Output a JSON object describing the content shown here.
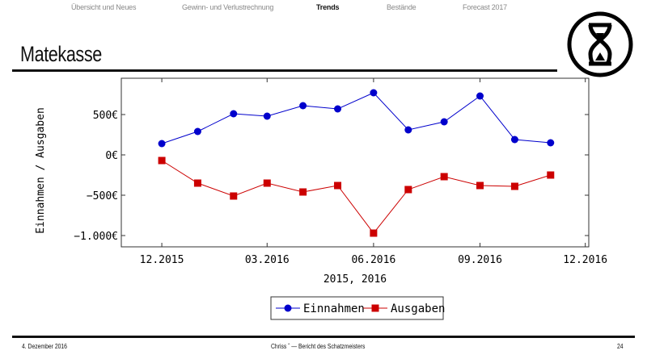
{
  "nav": {
    "items": [
      {
        "label": "Übersicht und Neues",
        "active": false
      },
      {
        "label": "Gewinn- und Verlustrechnung",
        "active": false
      },
      {
        "label": "Trends",
        "active": true
      },
      {
        "label": "Bestände",
        "active": false
      },
      {
        "label": "Forecast 2017",
        "active": false
      }
    ]
  },
  "slide": {
    "title": "Matekasse",
    "logo": "hourglass-circle-logo"
  },
  "footer": {
    "date": "4. Dezember 2016",
    "center": "Chriss ˆ — Bericht des Schatzmeisters",
    "page": "24"
  },
  "chart_data": {
    "type": "line",
    "title": "",
    "xlabel": "2015, 2016",
    "ylabel": "Einnahmen / Ausgaben",
    "x": [
      "2015-12",
      "2016-01",
      "2016-02",
      "2016-03",
      "2016-04",
      "2016-05",
      "2016-06",
      "2016-07",
      "2016-08",
      "2016-09",
      "2016-10",
      "2016-11"
    ],
    "xlim": [
      "2015-10-27",
      "2016-12-04"
    ],
    "ylim": [
      -1140,
      950
    ],
    "x_ticks": [
      {
        "value": "2015-12",
        "label": "12.2015"
      },
      {
        "value": "2016-03",
        "label": "03.2016"
      },
      {
        "value": "2016-06",
        "label": "06.2016"
      },
      {
        "value": "2016-09",
        "label": "09.2016"
      },
      {
        "value": "2016-12",
        "label": "12.2016"
      }
    ],
    "y_ticks": [
      {
        "value": 500,
        "label": "500€"
      },
      {
        "value": 0,
        "label": "0€"
      },
      {
        "value": -500,
        "label": "−500€"
      },
      {
        "value": -1000,
        "label": "−1.000€"
      }
    ],
    "grid": false,
    "legend_position": "bottom",
    "series": [
      {
        "name": "Einnahmen",
        "color": "#0000cc",
        "marker": "circle",
        "values": [
          140,
          290,
          510,
          480,
          610,
          570,
          770,
          310,
          410,
          730,
          190,
          150
        ]
      },
      {
        "name": "Ausgaben",
        "color": "#cc0000",
        "marker": "square",
        "values": [
          -70,
          -350,
          -510,
          -350,
          -460,
          -380,
          -970,
          -430,
          -270,
          -380,
          -390,
          -250
        ]
      }
    ]
  }
}
